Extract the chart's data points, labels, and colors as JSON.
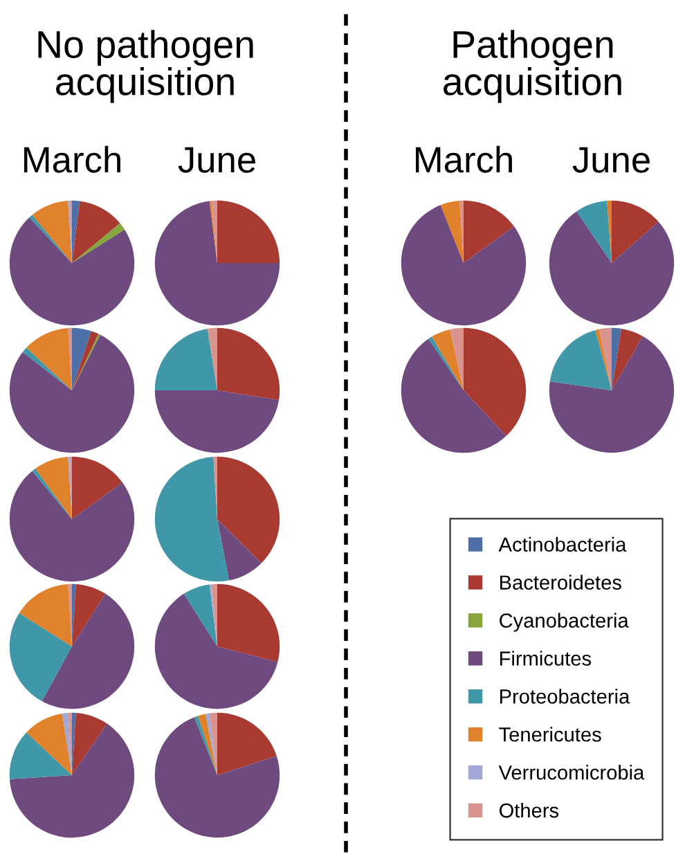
{
  "chart_data": [
    {
      "type": "other",
      "annotations": [
        "No pathogen acquisition",
        "Pathogen acquisition"
      ]
    },
    {
      "type": "pie",
      "title": "March",
      "legend": "bottom right",
      "categories": [
        "Actinobacteria",
        "Bacteroidetes",
        "Cyanobacteria",
        "Firmicutes",
        "Proteobacteria",
        "Tenericutes",
        "Verrucomicrobia",
        "Others"
      ],
      "values": [
        2,
        12,
        2,
        72,
        1,
        10,
        0.5,
        0.5
      ],
      "colors": [
        "#4f6fa8",
        "#a93a32",
        "#86a53a",
        "#6e4a7e",
        "#3f97a8",
        "#e0822b",
        "#a3a9d6",
        "#d99490"
      ]
    },
    {
      "type": "pie",
      "categories": [
        null,
        null,
        null,
        null,
        null,
        null,
        null,
        null
      ],
      "values": [
        5,
        2,
        0.5,
        78,
        1.5,
        12,
        null,
        1
      ],
      "colors": [
        "#4f6fa8",
        "#a93a32",
        "#86a53a",
        "#6e4a7e",
        "#3f97a8",
        "#e0822b",
        "#a3a9d6",
        "#d99490"
      ]
    },
    {
      "type": "pie",
      "categories": [
        null,
        null,
        null,
        null,
        null,
        null,
        null,
        null
      ],
      "values": [
        null,
        15,
        null,
        74,
        1,
        9,
        0.5,
        0.5
      ],
      "colors": [
        "#4f6fa8",
        "#a93a32",
        "#86a53a",
        "#6e4a7e",
        "#3f97a8",
        "#e0822b",
        "#a3a9d6",
        "#d99490"
      ]
    },
    {
      "type": "pie",
      "categories": [
        null,
        null,
        null,
        null,
        null,
        null,
        null,
        null
      ],
      "values": [
        1,
        8,
        null,
        49,
        26,
        15,
        null,
        1
      ],
      "colors": [
        "#4f6fa8",
        "#a93a32",
        "#86a53a",
        "#6e4a7e",
        "#3f97a8",
        "#e0822b",
        "#a3a9d6",
        "#d99490"
      ]
    },
    {
      "type": "pie",
      "categories": [
        null,
        null,
        null,
        null,
        null,
        null,
        null,
        null
      ],
      "values": [
        1,
        8.5,
        null,
        64.5,
        13,
        10.5,
        1.5,
        1
      ],
      "colors": [
        "#4f6fa8",
        "#a93a32",
        "#86a53a",
        "#6e4a7e",
        "#3f97a8",
        "#e0822b",
        "#a3a9d6",
        "#d99490"
      ]
    },
    {
      "type": "pie",
      "title": "June",
      "categories": [
        null,
        null,
        null,
        null,
        null,
        null,
        null,
        null
      ],
      "values": [
        null,
        25,
        null,
        73,
        null,
        0.5,
        null,
        1.5
      ],
      "colors": [
        "#4f6fa8",
        "#a93a32",
        "#86a53a",
        "#6e4a7e",
        "#3f97a8",
        "#e0822b",
        "#a3a9d6",
        "#d99490"
      ]
    },
    {
      "type": "pie",
      "categories": [
        null,
        null,
        null,
        null,
        null,
        null,
        null,
        null
      ],
      "values": [
        null,
        27.5,
        null,
        47.5,
        22.5,
        null,
        null,
        2.5
      ],
      "colors": [
        "#4f6fa8",
        "#a93a32",
        "#86a53a",
        "#6e4a7e",
        "#3f97a8",
        "#e0822b",
        "#a3a9d6",
        "#d99490"
      ]
    },
    {
      "type": "pie",
      "categories": [
        null,
        null,
        null,
        null,
        null,
        null,
        null,
        null
      ],
      "values": [
        null,
        37.5,
        null,
        9.5,
        52,
        null,
        null,
        1
      ],
      "colors": [
        "#4f6fa8",
        "#a93a32",
        "#86a53a",
        "#6e4a7e",
        "#3f97a8",
        "#e0822b",
        "#a3a9d6",
        "#d99490"
      ]
    },
    {
      "type": "pie",
      "categories": [
        null,
        null,
        null,
        null,
        null,
        null,
        null,
        null
      ],
      "values": [
        null,
        29,
        null,
        62,
        7,
        null,
        0.5,
        1.5
      ],
      "colors": [
        "#4f6fa8",
        "#a93a32",
        "#86a53a",
        "#6e4a7e",
        "#3f97a8",
        "#e0822b",
        "#a3a9d6",
        "#d99490"
      ]
    },
    {
      "type": "pie",
      "categories": [
        null,
        null,
        null,
        null,
        null,
        null,
        null,
        null
      ],
      "values": [
        null,
        20,
        null,
        74,
        1,
        2,
        1,
        2
      ],
      "colors": [
        "#4f6fa8",
        "#a93a32",
        "#86a53a",
        "#6e4a7e",
        "#3f97a8",
        "#e0822b",
        "#a3a9d6",
        "#d99490"
      ]
    },
    {
      "type": "pie",
      "title": "March",
      "categories": [
        null,
        null,
        null,
        null,
        null,
        null,
        null,
        null
      ],
      "values": [
        null,
        15,
        null,
        79,
        null,
        5,
        null,
        1
      ],
      "colors": [
        "#4f6fa8",
        "#a93a32",
        "#86a53a",
        "#6e4a7e",
        "#3f97a8",
        "#e0822b",
        "#a3a9d6",
        "#d99490"
      ]
    },
    {
      "type": "pie",
      "categories": [
        null,
        null,
        null,
        null,
        null,
        null,
        null,
        null
      ],
      "values": [
        null,
        38,
        null,
        52.5,
        1,
        5,
        null,
        3.5
      ],
      "colors": [
        "#4f6fa8",
        "#a93a32",
        "#86a53a",
        "#6e4a7e",
        "#3f97a8",
        "#e0822b",
        "#a3a9d6",
        "#d99490"
      ]
    },
    {
      "type": "pie",
      "title": "June",
      "categories": [
        null,
        null,
        null,
        null,
        null,
        null,
        null,
        null
      ],
      "values": [
        null,
        13.5,
        null,
        77,
        8.3,
        1.2,
        null,
        null
      ],
      "colors": [
        "#4f6fa8",
        "#a93a32",
        "#86a53a",
        "#6e4a7e",
        "#3f97a8",
        "#e0822b",
        "#a3a9d6",
        "#d99490"
      ]
    },
    {
      "type": "pie",
      "categories": [
        null,
        null,
        null,
        null,
        null,
        null,
        null,
        null
      ],
      "values": [
        2.5,
        5.8,
        null,
        69,
        18.5,
        1,
        null,
        3.2
      ],
      "colors": [
        "#4f6fa8",
        "#a93a32",
        "#86a53a",
        "#6e4a7e",
        "#3f97a8",
        "#e0822b",
        "#a3a9d6",
        "#d99490"
      ]
    }
  ]
}
